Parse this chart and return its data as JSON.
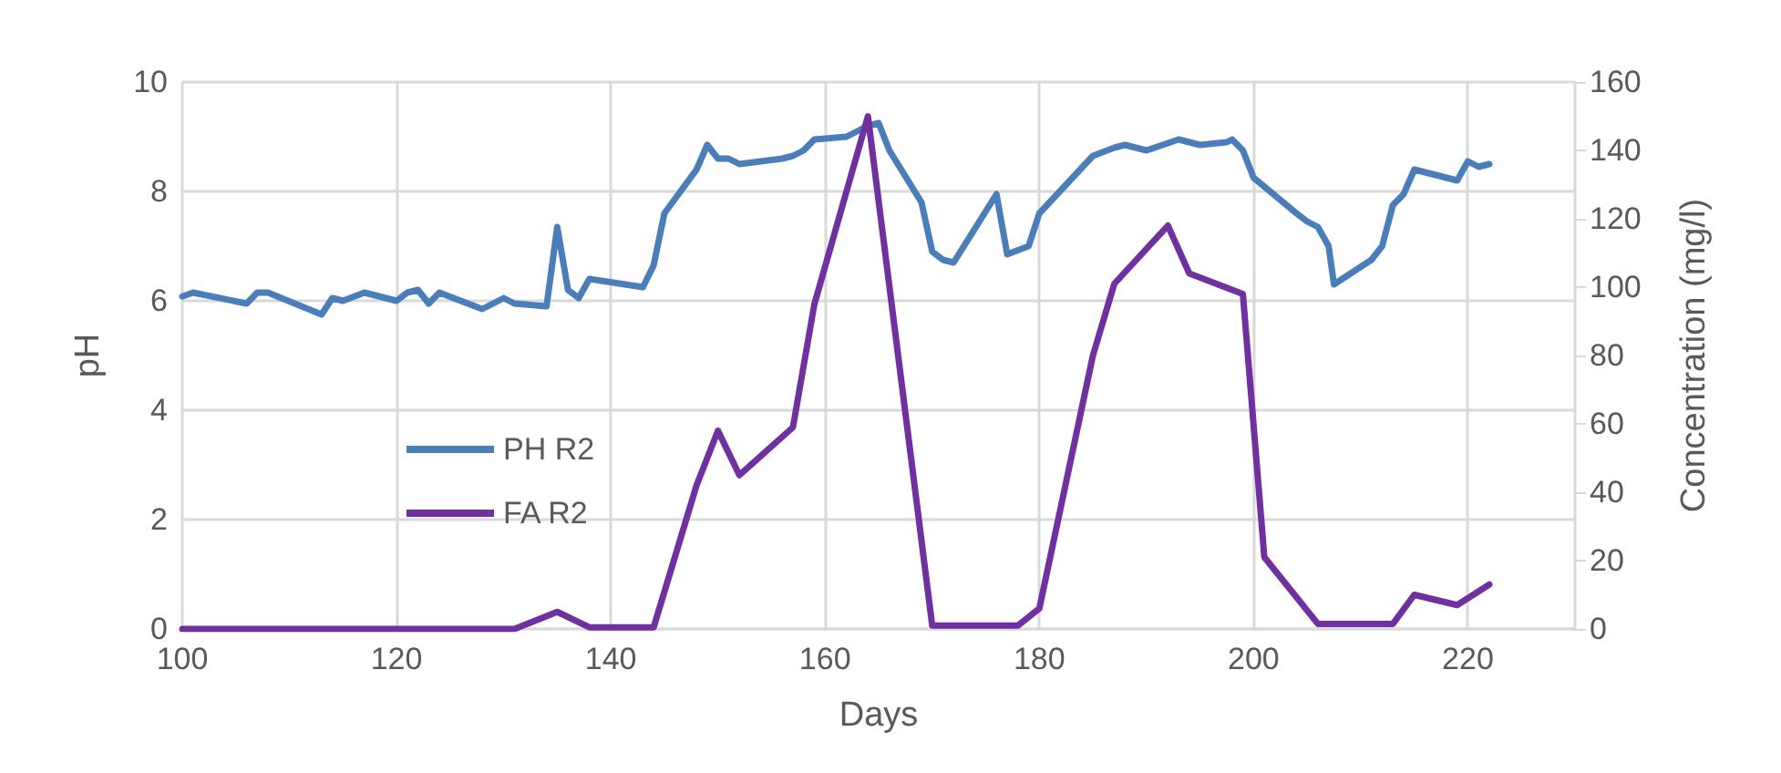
{
  "chart_data": {
    "type": "line",
    "xlabel": "Days",
    "ylabel": "pH",
    "y2label": "Concentration (mg/l)",
    "xlim": [
      100,
      230
    ],
    "xticks": [
      100,
      120,
      140,
      160,
      180,
      200,
      220
    ],
    "ylim": [
      0,
      10
    ],
    "yticks": [
      0,
      2,
      4,
      6,
      8,
      10
    ],
    "y2lim": [
      0,
      160
    ],
    "y2ticks": [
      0,
      20,
      40,
      60,
      80,
      100,
      120,
      140,
      160
    ],
    "grid": true,
    "legend": "left",
    "marker": "none",
    "line_style": "solid",
    "series": [
      {
        "name": "PH R2",
        "color": "#4a7ebb",
        "x": [
          100,
          101,
          106,
          107,
          108,
          113,
          114,
          115,
          117,
          120,
          121,
          122,
          123,
          124,
          128,
          130,
          131,
          134,
          135,
          136,
          137,
          138,
          143,
          144,
          145,
          148,
          149,
          150,
          151,
          152,
          156,
          157,
          158,
          159,
          162,
          164,
          165,
          166,
          169,
          170,
          171,
          172,
          176,
          177,
          179,
          180,
          185,
          187,
          188,
          190,
          193,
          195,
          197.5,
          198,
          199,
          200,
          204,
          205,
          206,
          207,
          207.5,
          211,
          212,
          213,
          214,
          215,
          219,
          220,
          221,
          222
        ],
        "values": [
          6.08,
          6.15,
          5.95,
          6.15,
          6.15,
          5.75,
          6.05,
          6.0,
          6.15,
          6.0,
          6.15,
          6.2,
          5.95,
          6.15,
          5.85,
          6.05,
          5.95,
          5.9,
          7.35,
          6.2,
          6.05,
          6.4,
          6.25,
          6.65,
          7.6,
          8.4,
          8.85,
          8.6,
          8.6,
          8.5,
          8.6,
          8.65,
          8.75,
          8.95,
          9.0,
          9.2,
          9.25,
          8.75,
          7.8,
          6.9,
          6.75,
          6.7,
          7.95,
          6.85,
          7.0,
          7.6,
          8.65,
          8.8,
          8.85,
          8.75,
          8.95,
          8.85,
          8.9,
          8.95,
          8.75,
          8.25,
          7.6,
          7.45,
          7.35,
          7.0,
          6.3,
          6.75,
          7.0,
          7.75,
          7.95,
          8.4,
          8.2,
          8.55,
          8.45,
          8.5
        ]
      },
      {
        "name": "FA R2",
        "color": "#7030a0",
        "axis": "y2",
        "x": [
          100,
          131,
          135,
          138,
          144,
          148,
          150,
          152,
          157,
          159,
          164,
          170,
          178,
          180,
          185,
          187,
          192,
          194,
          199,
          201,
          206,
          213,
          215,
          219,
          222
        ],
        "values": [
          0,
          0,
          5,
          0.5,
          0.5,
          42,
          58,
          45,
          59,
          95,
          150,
          1,
          1,
          6,
          80,
          101,
          118,
          104,
          98,
          21,
          1.5,
          1.5,
          10,
          7,
          13
        ]
      }
    ]
  }
}
